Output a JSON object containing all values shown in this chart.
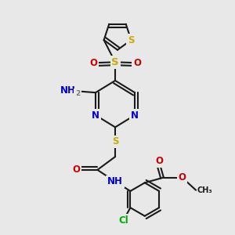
{
  "bg_color": "#e8e8e8",
  "bond_color": "#1a1a1a",
  "bond_width": 1.5,
  "dbo": 0.013,
  "font_size": 8.5,
  "colors": {
    "N": "#0000cc",
    "O": "#cc0000",
    "S": "#ccaa00",
    "Cl": "#00aa00",
    "C": "#1a1a1a",
    "NH": "#777777"
  }
}
